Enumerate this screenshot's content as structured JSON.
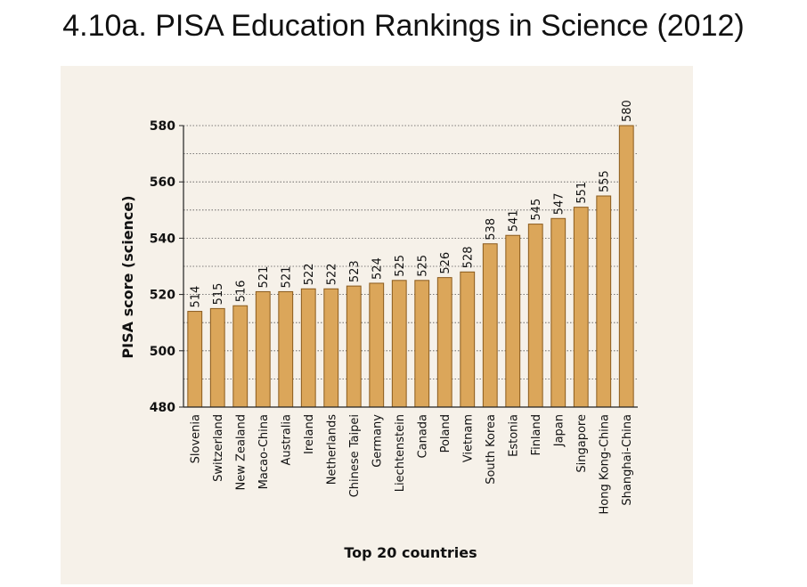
{
  "page": {
    "title": "4.10a. PISA Education Rankings in Science (2012)"
  },
  "colors": {
    "bar_fill": "#dba65a",
    "bar_stroke": "#8a5a1c",
    "panel_bg": "#f6f1e9",
    "text": "#111111"
  },
  "chart_data": {
    "type": "bar",
    "title": "4.10a. PISA Education Rankings in Science (2012)",
    "xlabel": "Top 20 countries",
    "ylabel": "PISA score (science)",
    "ylim": [
      480,
      580
    ],
    "yticks": [
      480,
      500,
      520,
      540,
      560,
      580
    ],
    "grid": true,
    "legend": "none",
    "categories": [
      "Slovenia",
      "Switzerland",
      "New Zealand",
      "Macao-China",
      "Australia",
      "Ireland",
      "Netherlands",
      "Chinese Taipei",
      "Germany",
      "Liechtenstein",
      "Canada",
      "Poland",
      "Vietnam",
      "South Korea",
      "Estonia",
      "Finland",
      "Japan",
      "Singapore",
      "Hong Kong-China",
      "Shanghai-China"
    ],
    "values": [
      514,
      515,
      516,
      521,
      521,
      522,
      522,
      523,
      524,
      525,
      525,
      526,
      528,
      538,
      541,
      545,
      547,
      551,
      555,
      580
    ]
  }
}
